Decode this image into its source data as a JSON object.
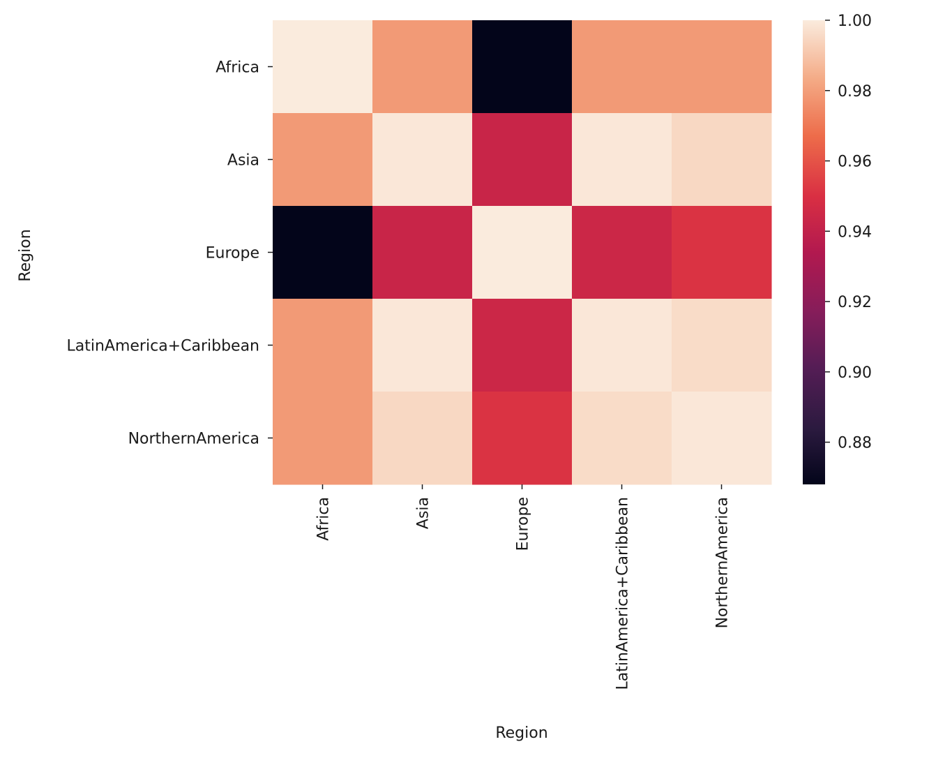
{
  "chart_data": {
    "type": "heatmap",
    "title": "",
    "xlabel": "Region",
    "ylabel": "Region",
    "x_categories": [
      "Africa",
      "Asia",
      "Europe",
      "LatinAmerica+Caribbean",
      "NorthernAmerica"
    ],
    "y_categories": [
      "Africa",
      "Asia",
      "Europe",
      "LatinAmerica+Caribbean",
      "NorthernAmerica"
    ],
    "values": [
      [
        1.0,
        0.979,
        0.868,
        0.979,
        0.979
      ],
      [
        0.979,
        0.999,
        0.943,
        0.999,
        0.995
      ],
      [
        0.868,
        0.943,
        1.0,
        0.944,
        0.951
      ],
      [
        0.979,
        0.999,
        0.944,
        0.999,
        0.996
      ],
      [
        0.979,
        0.995,
        0.951,
        0.996,
        0.999
      ]
    ],
    "colorbar": {
      "min": 0.868,
      "max": 1.0,
      "ticks": [
        0.88,
        0.9,
        0.92,
        0.94,
        0.96,
        0.98,
        1.0
      ],
      "tick_labels": [
        "0.88",
        "0.90",
        "0.92",
        "0.94",
        "0.96",
        "0.98",
        "1.00"
      ],
      "colormap": "rocket"
    }
  }
}
